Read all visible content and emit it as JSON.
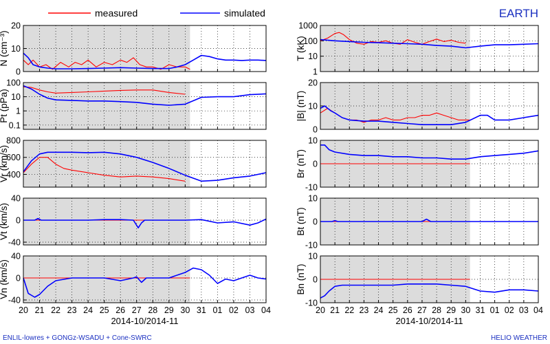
{
  "header": {
    "legend_measured": "measured",
    "legend_simulated": "simulated",
    "title": "EARTH"
  },
  "footer": {
    "left": "ENLIL-lowres + GONGz-WSADU + Cone-SWRC",
    "right": "HELIO WEATHER"
  },
  "colors": {
    "measured": "#ff0000",
    "simulated": "#0000ff",
    "shade": "#dcdcdc",
    "title": "#1a2fc0"
  },
  "chart_data": [
    {
      "type": "line",
      "panel": "N",
      "ylabel": "N (cm⁻³)",
      "ylim": [
        0,
        20
      ],
      "yscale": "linear",
      "yticks": [
        "0",
        "10",
        "20"
      ],
      "shade_x": [
        0,
        10.3
      ],
      "x_ticks": [
        "20",
        "21",
        "22",
        "23",
        "24",
        "25",
        "26",
        "27",
        "28",
        "29",
        "30",
        "31",
        "01",
        "02",
        "03",
        "04"
      ],
      "xlabel": "",
      "series": [
        {
          "name": "measured",
          "x": [
            0,
            0.3,
            0.6,
            1,
            1.4,
            1.8,
            2.3,
            2.8,
            3.2,
            3.6,
            4,
            4.5,
            5,
            5.5,
            6,
            6.4,
            6.8,
            7.2,
            7.6,
            8,
            8.5,
            9,
            9.5,
            10,
            10.3
          ],
          "y": [
            5,
            3,
            5,
            2,
            3,
            1,
            4,
            2,
            4,
            3,
            5,
            2,
            4,
            3,
            5,
            4,
            6,
            3,
            2,
            2,
            1,
            3,
            2,
            2,
            1
          ]
        },
        {
          "name": "simulated",
          "x": [
            0,
            0.3,
            0.6,
            1,
            1.5,
            2,
            3,
            4,
            5,
            6,
            7,
            8,
            9,
            9.5,
            10,
            10.5,
            11,
            11.5,
            12,
            12.5,
            13,
            13.5,
            14,
            14.5,
            15
          ],
          "y": [
            8,
            6,
            3,
            2,
            1.5,
            1.2,
            1.2,
            1.3,
            1.5,
            1.7,
            1.5,
            1.3,
            1.3,
            2,
            3,
            5,
            7,
            6.5,
            5.5,
            5,
            5,
            4.8,
            5,
            5,
            4.8
          ]
        }
      ]
    },
    {
      "type": "line",
      "panel": "Pt",
      "ylabel": "Pt (pPa)",
      "ylim": [
        0.05,
        100
      ],
      "yscale": "log",
      "yticks": [
        "100",
        "10",
        "1",
        "0.1"
      ],
      "shade_x": [
        0,
        10.3
      ],
      "x_ticks": [
        "20",
        "21",
        "22",
        "23",
        "24",
        "25",
        "26",
        "27",
        "28",
        "29",
        "30",
        "31",
        "01",
        "02",
        "03",
        "04"
      ],
      "xlabel": "",
      "series": [
        {
          "name": "measured",
          "x": [
            0,
            0.5,
            1,
            1.5,
            2,
            3,
            4,
            5,
            6,
            7,
            8,
            9,
            10
          ],
          "y": [
            50,
            45,
            30,
            22,
            18,
            20,
            22,
            25,
            28,
            30,
            30,
            20,
            15
          ]
        },
        {
          "name": "simulated",
          "x": [
            0,
            0.5,
            1,
            1.5,
            2,
            3,
            4,
            5,
            6,
            7,
            8,
            9,
            10,
            11,
            12,
            13,
            14,
            15
          ],
          "y": [
            60,
            35,
            15,
            8,
            6,
            5.5,
            5,
            5,
            4.5,
            4,
            3,
            2.5,
            3,
            9,
            10,
            10,
            14,
            16
          ]
        }
      ]
    },
    {
      "type": "line",
      "panel": "Vr",
      "ylabel": "Vr (km/s)",
      "ylim": [
        250,
        800
      ],
      "yscale": "linear",
      "yticks": [
        "800",
        "600",
        "400"
      ],
      "shade_x": [
        0,
        10.3
      ],
      "x_ticks": [
        "20",
        "21",
        "22",
        "23",
        "24",
        "25",
        "26",
        "27",
        "28",
        "29",
        "30",
        "31",
        "01",
        "02",
        "03",
        "04"
      ],
      "xlabel": "",
      "series": [
        {
          "name": "measured",
          "x": [
            0,
            0.5,
            1,
            1.5,
            2,
            2.5,
            3,
            4,
            5,
            6,
            7,
            8,
            9,
            10
          ],
          "y": [
            420,
            520,
            600,
            600,
            520,
            470,
            450,
            420,
            390,
            370,
            380,
            370,
            350,
            320
          ]
        },
        {
          "name": "simulated",
          "x": [
            0,
            0.5,
            1,
            1.5,
            2,
            3,
            4,
            5,
            6,
            7,
            8,
            9,
            10,
            11,
            12,
            13,
            14,
            15
          ],
          "y": [
            430,
            560,
            640,
            660,
            660,
            660,
            655,
            660,
            640,
            600,
            540,
            470,
            390,
            320,
            330,
            360,
            380,
            420
          ]
        }
      ]
    },
    {
      "type": "line",
      "panel": "Vt",
      "ylabel": "Vt (km/s)",
      "ylim": [
        -45,
        40
      ],
      "yscale": "linear",
      "yticks": [
        "40",
        "0",
        "-40"
      ],
      "shade_x": [
        0,
        10.3
      ],
      "x_ticks": [
        "20",
        "21",
        "22",
        "23",
        "24",
        "25",
        "26",
        "27",
        "28",
        "29",
        "30",
        "31",
        "01",
        "02",
        "03",
        "04"
      ],
      "xlabel": "",
      "series": [
        {
          "name": "measured",
          "x": [
            0,
            10.3
          ],
          "y": [
            0,
            0
          ]
        },
        {
          "name": "simulated",
          "x": [
            0,
            0.7,
            0.9,
            1.1,
            2,
            3,
            4,
            5,
            6,
            6.8,
            7.1,
            7.3,
            7.5,
            8,
            9,
            10,
            11,
            12,
            13,
            14,
            14.5,
            15
          ],
          "y": [
            0,
            0,
            3,
            0,
            0,
            0,
            0,
            1,
            1,
            0,
            -14,
            -5,
            0,
            0,
            0,
            0,
            1,
            -5,
            -3,
            -9,
            -5,
            2
          ]
        }
      ]
    },
    {
      "type": "line",
      "panel": "Vn",
      "ylabel": "Vn (km/s)",
      "ylim": [
        -45,
        40
      ],
      "yscale": "linear",
      "yticks": [
        "40",
        "0",
        "-40"
      ],
      "shade_x": [
        0,
        10.3
      ],
      "x_ticks": [
        "20",
        "21",
        "22",
        "23",
        "24",
        "25",
        "26",
        "27",
        "28",
        "29",
        "30",
        "31",
        "01",
        "02",
        "03",
        "04"
      ],
      "xlabel": "2014-10/2014-11",
      "series": [
        {
          "name": "measured",
          "x": [
            0,
            10.3
          ],
          "y": [
            0,
            0
          ]
        },
        {
          "name": "simulated",
          "x": [
            0,
            0.3,
            0.7,
            1,
            1.5,
            2,
            3,
            4,
            5,
            6,
            6.8,
            7,
            7.3,
            7.6,
            8,
            9,
            10,
            10.5,
            11,
            11.5,
            12,
            12.5,
            13,
            13.5,
            14,
            14.5,
            15
          ],
          "y": [
            0,
            -28,
            -35,
            -30,
            -15,
            -5,
            0,
            0,
            0,
            -5,
            0,
            2,
            -8,
            0,
            0,
            0,
            10,
            18,
            15,
            5,
            -10,
            -2,
            -5,
            0,
            5,
            0,
            -2
          ]
        }
      ]
    },
    {
      "type": "line",
      "panel": "T",
      "ylabel": "T (kK)",
      "ylim": [
        1,
        1000
      ],
      "yscale": "log",
      "yticks": [
        "1000",
        "100",
        "10",
        "1"
      ],
      "shade_x": [
        0,
        10.3
      ],
      "x_ticks": [
        "20",
        "21",
        "22",
        "23",
        "24",
        "25",
        "26",
        "27",
        "28",
        "29",
        "30",
        "31",
        "01",
        "02",
        "03",
        "04"
      ],
      "xlabel": "",
      "series": [
        {
          "name": "measured",
          "x": [
            0,
            0.5,
            1,
            1.3,
            1.6,
            2,
            2.5,
            3,
            3.5,
            4,
            4.5,
            5,
            5.5,
            6,
            6.5,
            7,
            7.5,
            8,
            8.5,
            9,
            9.5,
            10
          ],
          "y": [
            100,
            150,
            300,
            350,
            250,
            120,
            70,
            60,
            90,
            80,
            100,
            70,
            60,
            120,
            80,
            60,
            90,
            130,
            90,
            110,
            80,
            70
          ]
        },
        {
          "name": "simulated",
          "x": [
            0,
            0.5,
            1,
            2,
            3,
            4,
            5,
            6,
            7,
            8,
            9,
            10,
            11,
            12,
            13,
            14,
            15
          ],
          "y": [
            120,
            110,
            100,
            90,
            80,
            75,
            70,
            65,
            60,
            50,
            45,
            35,
            45,
            55,
            55,
            60,
            65
          ]
        }
      ]
    },
    {
      "type": "line",
      "panel": "|B|",
      "ylabel": "|B| (nT)",
      "ylim": [
        0,
        20
      ],
      "yscale": "linear",
      "yticks": [
        "20",
        "10",
        "0"
      ],
      "shade_x": [
        0,
        10.3
      ],
      "x_ticks": [
        "20",
        "21",
        "22",
        "23",
        "24",
        "25",
        "26",
        "27",
        "28",
        "29",
        "30",
        "31",
        "01",
        "02",
        "03",
        "04"
      ],
      "xlabel": "",
      "series": [
        {
          "name": "measured",
          "x": [
            0,
            0.5,
            1,
            1.5,
            2,
            2.5,
            3,
            3.5,
            4,
            4.5,
            5,
            5.5,
            6,
            6.5,
            7,
            7.5,
            8,
            8.5,
            9,
            9.5,
            10,
            10.3
          ],
          "y": [
            7,
            9,
            7,
            5,
            4,
            4,
            3,
            4,
            4,
            5,
            4,
            4,
            5,
            5,
            6,
            6,
            7,
            6,
            5,
            4,
            4,
            4
          ]
        },
        {
          "name": "simulated",
          "x": [
            0,
            0.3,
            0.7,
            1,
            1.5,
            2,
            3,
            4,
            5,
            6,
            7,
            8,
            9,
            10,
            11,
            11.5,
            12,
            13,
            14,
            15
          ],
          "y": [
            9,
            10,
            8,
            7,
            5,
            4,
            3.5,
            3.5,
            3,
            2.5,
            2,
            2,
            2,
            3,
            6,
            6,
            4,
            4,
            5,
            6
          ]
        }
      ]
    },
    {
      "type": "line",
      "panel": "Br",
      "ylabel": "Br (nT)",
      "ylim": [
        -10,
        10
      ],
      "yscale": "linear",
      "yticks": [
        "10",
        "0",
        "-10"
      ],
      "shade_x": [
        0,
        10.3
      ],
      "x_ticks": [
        "20",
        "21",
        "22",
        "23",
        "24",
        "25",
        "26",
        "27",
        "28",
        "29",
        "30",
        "31",
        "01",
        "02",
        "03",
        "04"
      ],
      "xlabel": "",
      "series": [
        {
          "name": "measured",
          "x": [
            0,
            10.3
          ],
          "y": [
            0,
            0
          ]
        },
        {
          "name": "simulated",
          "x": [
            0,
            0.3,
            0.6,
            1,
            2,
            3,
            4,
            5,
            6,
            7,
            8,
            9,
            10,
            11,
            12,
            13,
            14,
            15
          ],
          "y": [
            8,
            8,
            6,
            5,
            4,
            3.5,
            3.5,
            3,
            3,
            2.5,
            2.5,
            2,
            2,
            3,
            3.5,
            4,
            4.5,
            5.5
          ]
        }
      ]
    },
    {
      "type": "line",
      "panel": "Bt",
      "ylabel": "Bt (nT)",
      "ylim": [
        -10,
        10
      ],
      "yscale": "linear",
      "yticks": [
        "10",
        "0",
        "-10"
      ],
      "shade_x": [
        0,
        10.3
      ],
      "x_ticks": [
        "20",
        "21",
        "22",
        "23",
        "24",
        "25",
        "26",
        "27",
        "28",
        "29",
        "30",
        "31",
        "01",
        "02",
        "03",
        "04"
      ],
      "xlabel": "",
      "series": [
        {
          "name": "measured",
          "x": [
            0,
            10.3
          ],
          "y": [
            0,
            0
          ]
        },
        {
          "name": "simulated",
          "x": [
            0,
            0.8,
            1,
            1.2,
            2,
            3,
            4,
            5,
            6,
            7,
            7.3,
            7.6,
            8,
            9,
            10,
            11,
            12,
            13,
            14,
            15
          ],
          "y": [
            0,
            0,
            0.4,
            0,
            0,
            0,
            0,
            0,
            0,
            0,
            1,
            0,
            0,
            0,
            0,
            0,
            0,
            0,
            0,
            0
          ]
        }
      ]
    },
    {
      "type": "line",
      "panel": "Bn",
      "ylabel": "Bn (nT)",
      "ylim": [
        -10,
        10
      ],
      "yscale": "linear",
      "yticks": [
        "10",
        "0",
        "-10"
      ],
      "shade_x": [
        0,
        10.3
      ],
      "x_ticks": [
        "20",
        "21",
        "22",
        "23",
        "24",
        "25",
        "26",
        "27",
        "28",
        "29",
        "30",
        "31",
        "01",
        "02",
        "03",
        "04"
      ],
      "xlabel": "2014-10/2014-11",
      "series": [
        {
          "name": "measured",
          "x": [
            0,
            10.3
          ],
          "y": [
            0,
            0
          ]
        },
        {
          "name": "simulated",
          "x": [
            0,
            0.3,
            0.6,
            1,
            1.5,
            2,
            3,
            4,
            5,
            6,
            7,
            8,
            9,
            10,
            11,
            12,
            13,
            14,
            15
          ],
          "y": [
            -8,
            -7,
            -5,
            -3,
            -2.5,
            -2.5,
            -2.5,
            -2.5,
            -2.5,
            -2,
            -2,
            -2,
            -2.5,
            -3,
            -5,
            -5.5,
            -4.5,
            -4.5,
            -5
          ]
        }
      ]
    }
  ]
}
